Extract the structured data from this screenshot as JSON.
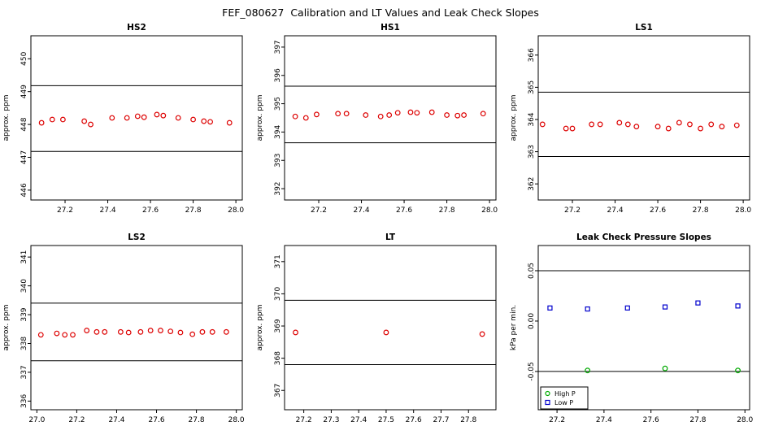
{
  "title": "FEF_080627  Calibration and LT Values and Leak Check Slopes",
  "colors": {
    "cal_point": "#dd0000",
    "high_p": "#00aa00",
    "low_p": "#0000cc",
    "axis": "#000000"
  },
  "chart_data": [
    {
      "type": "scatter",
      "title": "HS2",
      "ylabel": "approx. ppm",
      "xlim": [
        27.04,
        28.03
      ],
      "ylim": [
        445.7,
        450.7
      ],
      "xticks": [
        "27.2",
        "27.4",
        "27.6",
        "27.8",
        "28.0"
      ],
      "yticks": [
        "446",
        "447",
        "448",
        "449",
        "450"
      ],
      "hlines": [
        449.18,
        447.18
      ],
      "grid": false,
      "series": [
        {
          "name": "calibration",
          "marker": "circle",
          "color": "#dd0000",
          "points": [
            [
              27.09,
              448.05
            ],
            [
              27.14,
              448.15
            ],
            [
              27.19,
              448.15
            ],
            [
              27.29,
              448.1
            ],
            [
              27.32,
              448.0
            ],
            [
              27.42,
              448.2
            ],
            [
              27.49,
              448.2
            ],
            [
              27.54,
              448.25
            ],
            [
              27.57,
              448.22
            ],
            [
              27.63,
              448.3
            ],
            [
              27.66,
              448.27
            ],
            [
              27.73,
              448.2
            ],
            [
              27.8,
              448.15
            ],
            [
              27.85,
              448.1
            ],
            [
              27.88,
              448.08
            ],
            [
              27.97,
              448.05
            ]
          ]
        }
      ]
    },
    {
      "type": "scatter",
      "title": "HS1",
      "ylabel": "approx. ppm",
      "xlim": [
        27.04,
        28.03
      ],
      "ylim": [
        391.6,
        397.4
      ],
      "xticks": [
        "27.2",
        "27.4",
        "27.6",
        "27.8",
        "28.0"
      ],
      "yticks": [
        "392",
        "393",
        "394",
        "395",
        "396",
        "397"
      ],
      "hlines": [
        395.62,
        393.62
      ],
      "grid": false,
      "series": [
        {
          "name": "calibration",
          "marker": "circle",
          "color": "#dd0000",
          "points": [
            [
              27.09,
              394.55
            ],
            [
              27.14,
              394.5
            ],
            [
              27.19,
              394.62
            ],
            [
              27.29,
              394.65
            ],
            [
              27.33,
              394.65
            ],
            [
              27.42,
              394.6
            ],
            [
              27.49,
              394.55
            ],
            [
              27.53,
              394.6
            ],
            [
              27.57,
              394.68
            ],
            [
              27.63,
              394.7
            ],
            [
              27.66,
              394.68
            ],
            [
              27.73,
              394.7
            ],
            [
              27.8,
              394.6
            ],
            [
              27.85,
              394.58
            ],
            [
              27.88,
              394.6
            ],
            [
              27.97,
              394.65
            ]
          ]
        }
      ]
    },
    {
      "type": "scatter",
      "title": "LS1",
      "ylabel": "approx. ppm",
      "xlim": [
        27.04,
        28.03
      ],
      "ylim": [
        361.5,
        366.6
      ],
      "xticks": [
        "27.2",
        "27.4",
        "27.6",
        "27.8",
        "28.0"
      ],
      "yticks": [
        "362",
        "363",
        "364",
        "365",
        "366"
      ],
      "hlines": [
        364.85,
        362.85
      ],
      "grid": false,
      "series": [
        {
          "name": "calibration",
          "marker": "circle",
          "color": "#dd0000",
          "points": [
            [
              27.06,
              363.85
            ],
            [
              27.17,
              363.72
            ],
            [
              27.2,
              363.72
            ],
            [
              27.29,
              363.85
            ],
            [
              27.33,
              363.85
            ],
            [
              27.42,
              363.9
            ],
            [
              27.46,
              363.85
            ],
            [
              27.5,
              363.78
            ],
            [
              27.6,
              363.78
            ],
            [
              27.65,
              363.72
            ],
            [
              27.7,
              363.9
            ],
            [
              27.75,
              363.85
            ],
            [
              27.8,
              363.72
            ],
            [
              27.85,
              363.85
            ],
            [
              27.9,
              363.78
            ],
            [
              27.97,
              363.82
            ]
          ]
        }
      ]
    },
    {
      "type": "scatter",
      "title": "LS2",
      "ylabel": "approx. ppm",
      "xlim": [
        26.97,
        28.03
      ],
      "ylim": [
        335.7,
        341.4
      ],
      "xticks": [
        "27.0",
        "27.2",
        "27.4",
        "27.6",
        "27.8",
        "28.0"
      ],
      "yticks": [
        "336",
        "337",
        "338",
        "339",
        "340",
        "341"
      ],
      "hlines": [
        339.4,
        337.4
      ],
      "grid": false,
      "series": [
        {
          "name": "calibration",
          "marker": "circle",
          "color": "#dd0000",
          "points": [
            [
              27.02,
              338.3
            ],
            [
              27.1,
              338.35
            ],
            [
              27.14,
              338.3
            ],
            [
              27.18,
              338.3
            ],
            [
              27.25,
              338.45
            ],
            [
              27.3,
              338.4
            ],
            [
              27.34,
              338.4
            ],
            [
              27.42,
              338.4
            ],
            [
              27.46,
              338.38
            ],
            [
              27.52,
              338.4
            ],
            [
              27.57,
              338.45
            ],
            [
              27.62,
              338.45
            ],
            [
              27.67,
              338.42
            ],
            [
              27.72,
              338.38
            ],
            [
              27.78,
              338.32
            ],
            [
              27.83,
              338.4
            ],
            [
              27.88,
              338.4
            ],
            [
              27.95,
              338.4
            ]
          ]
        }
      ]
    },
    {
      "type": "scatter",
      "title": "LT",
      "ylabel": "approx. ppm",
      "xlim": [
        27.13,
        27.9
      ],
      "ylim": [
        366.4,
        371.5
      ],
      "xticks": [
        "27.2",
        "27.3",
        "27.4",
        "27.5",
        "27.6",
        "27.7",
        "27.8"
      ],
      "yticks": [
        "367",
        "368",
        "369",
        "370",
        "371"
      ],
      "hlines": [
        369.8,
        367.8
      ],
      "grid": false,
      "series": [
        {
          "name": "LT",
          "marker": "circle",
          "color": "#dd0000",
          "points": [
            [
              27.17,
              368.8
            ],
            [
              27.5,
              368.8
            ],
            [
              27.85,
              368.75
            ]
          ]
        }
      ]
    },
    {
      "type": "scatter",
      "title": "Leak Check Pressure Slopes",
      "ylabel": "kPa per min.",
      "xlim": [
        27.12,
        28.02
      ],
      "ylim": [
        -0.088,
        0.075
      ],
      "xticks": [
        "27.2",
        "27.4",
        "27.6",
        "27.8",
        "28.0"
      ],
      "yticks": [
        "-0.05",
        "0.00",
        "0.05"
      ],
      "hlines": [
        0.05,
        -0.05
      ],
      "grid": false,
      "legend": {
        "position": "bottom-left",
        "entries": [
          "High P",
          "Low P"
        ]
      },
      "series": [
        {
          "name": "High P",
          "marker": "circle",
          "color": "#00aa00",
          "points": [
            [
              27.33,
              -0.049
            ],
            [
              27.66,
              -0.047
            ],
            [
              27.97,
              -0.049
            ]
          ]
        },
        {
          "name": "Low P",
          "marker": "square",
          "color": "#0000cc",
          "points": [
            [
              27.17,
              0.013
            ],
            [
              27.33,
              0.012
            ],
            [
              27.5,
              0.013
            ],
            [
              27.66,
              0.014
            ],
            [
              27.8,
              0.018
            ],
            [
              27.97,
              0.015
            ]
          ]
        }
      ]
    }
  ]
}
